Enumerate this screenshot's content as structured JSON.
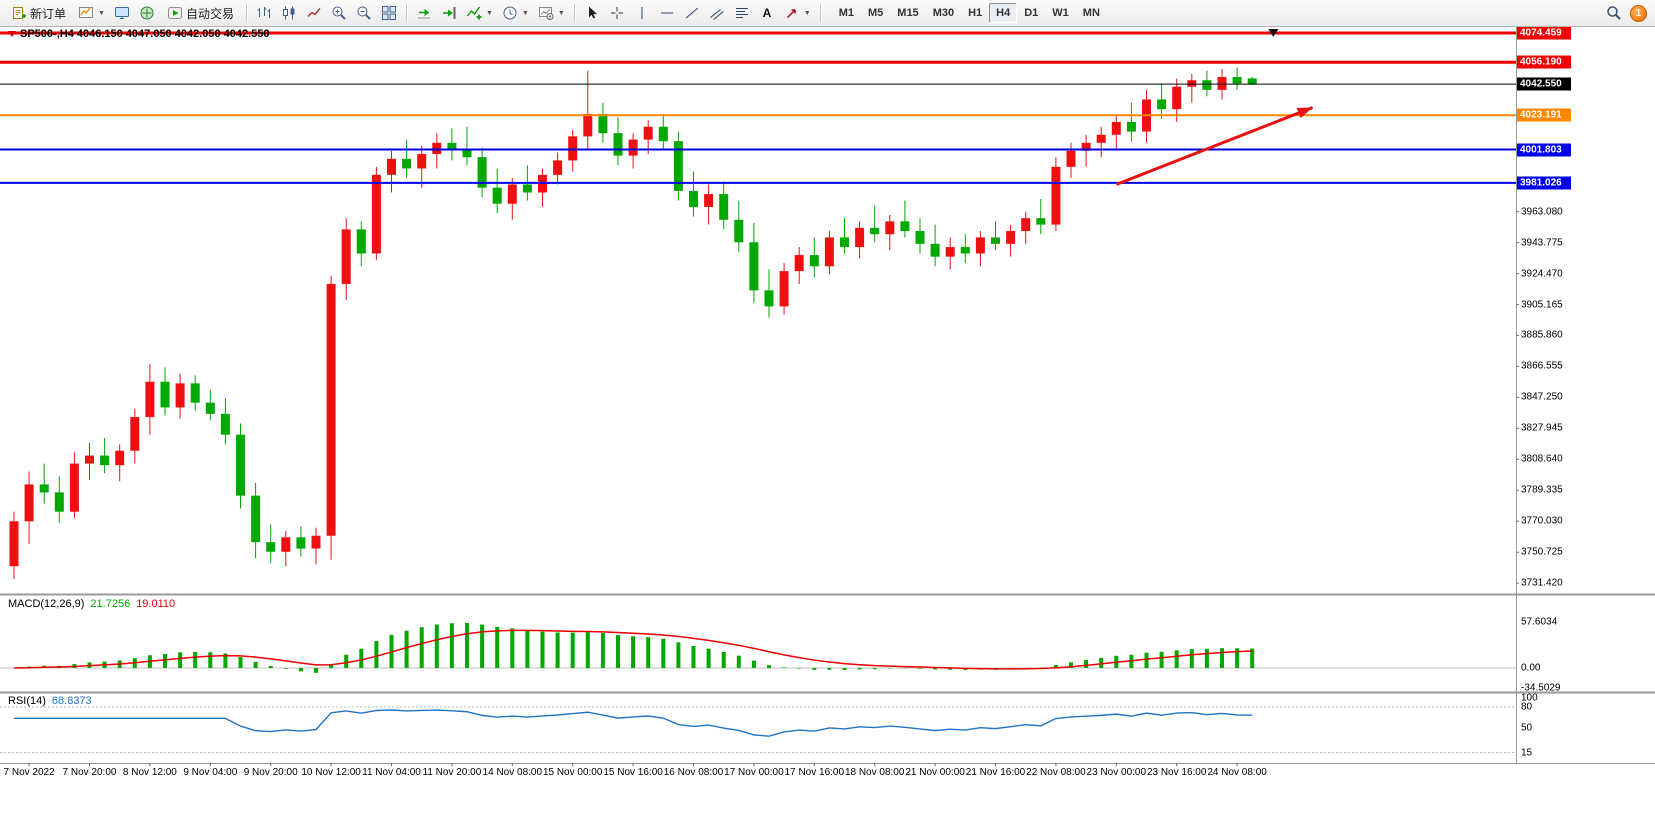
{
  "toolbar": {
    "new_order": "新订单",
    "autotrading": "自动交易",
    "timeframes": [
      "M1",
      "M5",
      "M15",
      "M30",
      "H1",
      "H4",
      "D1",
      "W1",
      "MN"
    ],
    "active_timeframe": "H4",
    "notification_count": "1"
  },
  "symbol_line": {
    "text": "SP500-,H4 4046.150 4047.050 4042.050 4042.550"
  },
  "chart_data": {
    "type": "candlestick",
    "symbol": "SP500-",
    "timeframe": "H4",
    "last_ohlc": {
      "open": 4046.15,
      "high": 4047.05,
      "low": 4042.05,
      "close": 4042.55
    },
    "price_axis": {
      "max": 4078.2,
      "min": 3725.3,
      "tick_labels": [
        "3963.080",
        "3943.775",
        "3924.470",
        "3905.165",
        "3885.860",
        "3866.555",
        "3847.250",
        "3827.945",
        "3808.640",
        "3789.335",
        "3770.030",
        "3750.725",
        "3731.420"
      ]
    },
    "x_labels": [
      "7 Nov 2022",
      "7 Nov 20:00",
      "8 Nov 12:00",
      "9 Nov 04:00",
      "9 Nov 20:00",
      "10 Nov 12:00",
      "11 Nov 04:00",
      "11 Nov 20:00",
      "14 Nov 08:00",
      "15 Nov 00:00",
      "15 Nov 16:00",
      "16 Nov 08:00",
      "17 Nov 00:00",
      "17 Nov 16:00",
      "18 Nov 08:00",
      "21 Nov 00:00",
      "21 Nov 16:00",
      "22 Nov 08:00",
      "23 Nov 00:00",
      "23 Nov 16:00",
      "24 Nov 08:00"
    ],
    "x_label_start_index": 1,
    "x_label_step": 4,
    "colors": {
      "up": "#ee1010",
      "down": "#00a800"
    },
    "levels": [
      {
        "price": 4074.459,
        "label": "4074.459",
        "color": "#ee0000",
        "width": 3
      },
      {
        "price": 4056.19,
        "label": "4056.190",
        "color": "#ee0000",
        "width": 3
      },
      {
        "price": 4042.55,
        "label": "4042.550",
        "color": "#000000",
        "width": 1
      },
      {
        "price": 4023.191,
        "label": "4023.191",
        "color": "#ff8800",
        "width": 2
      },
      {
        "price": 4001.803,
        "label": "4001.803",
        "color": "#0000e6",
        "width": 2
      },
      {
        "price": 3981.026,
        "label": "3981.026",
        "color": "#0000e6",
        "width": 2
      }
    ],
    "trend_arrow": {
      "from": {
        "index": 73,
        "price": 3980
      },
      "to": {
        "index": 86,
        "price": 4028
      },
      "color": "#e81212"
    },
    "time_marker_index": 83.4,
    "candles": [
      [
        3742,
        3776,
        3734,
        3770
      ],
      [
        3770,
        3801,
        3756,
        3793
      ],
      [
        3793,
        3806,
        3781,
        3788
      ],
      [
        3788,
        3798,
        3769,
        3776
      ],
      [
        3776,
        3813,
        3772,
        3806
      ],
      [
        3806,
        3819,
        3796,
        3811
      ],
      [
        3811,
        3822,
        3800,
        3805
      ],
      [
        3805,
        3818,
        3795,
        3814
      ],
      [
        3814,
        3840,
        3806,
        3835
      ],
      [
        3835,
        3868,
        3824,
        3857
      ],
      [
        3857,
        3866,
        3836,
        3841
      ],
      [
        3841,
        3862,
        3834,
        3856
      ],
      [
        3856,
        3861,
        3839,
        3844
      ],
      [
        3844,
        3852,
        3833,
        3837
      ],
      [
        3837,
        3847,
        3818,
        3824
      ],
      [
        3824,
        3831,
        3778,
        3786
      ],
      [
        3786,
        3794,
        3747,
        3757
      ],
      [
        3757,
        3768,
        3744,
        3751
      ],
      [
        3751,
        3764,
        3742,
        3760
      ],
      [
        3760,
        3767,
        3748,
        3753
      ],
      [
        3753,
        3766,
        3743,
        3761
      ],
      [
        3761,
        3923,
        3746,
        3918
      ],
      [
        3918,
        3959,
        3908,
        3952
      ],
      [
        3952,
        3957,
        3929,
        3937
      ],
      [
        3937,
        3991,
        3933,
        3986
      ],
      [
        3986,
        4001,
        3975,
        3996
      ],
      [
        3996,
        4008,
        3984,
        3990
      ],
      [
        3990,
        4004,
        3978,
        3999
      ],
      [
        3999,
        4012,
        3990,
        4006
      ],
      [
        4006,
        4015,
        3995,
        4002
      ],
      [
        4002,
        4016,
        3992,
        3997
      ],
      [
        3997,
        4003,
        3972,
        3978
      ],
      [
        3978,
        3990,
        3962,
        3968
      ],
      [
        3968,
        3984,
        3958,
        3980
      ],
      [
        3980,
        3992,
        3970,
        3975
      ],
      [
        3975,
        3990,
        3966,
        3986
      ],
      [
        3986,
        4000,
        3980,
        3995
      ],
      [
        3995,
        4014,
        3988,
        4010
      ],
      [
        4010,
        4051,
        4002,
        4024
      ],
      [
        4024,
        4031,
        4006,
        4012
      ],
      [
        4012,
        4022,
        3992,
        3998
      ],
      [
        3998,
        4012,
        3990,
        4008
      ],
      [
        4008,
        4020,
        3999,
        4016
      ],
      [
        4016,
        4024,
        4002,
        4007
      ],
      [
        4007,
        4013,
        3970,
        3976
      ],
      [
        3976,
        3988,
        3960,
        3966
      ],
      [
        3966,
        3980,
        3955,
        3974
      ],
      [
        3974,
        3982,
        3952,
        3958
      ],
      [
        3958,
        3970,
        3938,
        3944
      ],
      [
        3944,
        3956,
        3906,
        3914
      ],
      [
        3914,
        3927,
        3897,
        3904
      ],
      [
        3904,
        3931,
        3899,
        3926
      ],
      [
        3926,
        3941,
        3918,
        3936
      ],
      [
        3936,
        3947,
        3922,
        3929
      ],
      [
        3929,
        3951,
        3924,
        3947
      ],
      [
        3947,
        3959,
        3937,
        3941
      ],
      [
        3941,
        3957,
        3934,
        3953
      ],
      [
        3953,
        3967,
        3944,
        3949
      ],
      [
        3949,
        3961,
        3939,
        3957
      ],
      [
        3957,
        3970,
        3947,
        3951
      ],
      [
        3951,
        3959,
        3937,
        3943
      ],
      [
        3943,
        3955,
        3929,
        3935
      ],
      [
        3935,
        3947,
        3927,
        3941
      ],
      [
        3941,
        3949,
        3931,
        3937
      ],
      [
        3937,
        3951,
        3929,
        3947
      ],
      [
        3947,
        3957,
        3939,
        3943
      ],
      [
        3943,
        3955,
        3935,
        3951
      ],
      [
        3951,
        3963,
        3943,
        3959
      ],
      [
        3959,
        3971,
        3949,
        3955
      ],
      [
        3955,
        3997,
        3951,
        3991
      ],
      [
        3991,
        4006,
        3984,
        4001
      ],
      [
        4001,
        4011,
        3991,
        4006
      ],
      [
        4006,
        4016,
        3997,
        4011
      ],
      [
        4011,
        4023,
        4001,
        4019
      ],
      [
        4019,
        4031,
        4007,
        4013
      ],
      [
        4013,
        4039,
        4006,
        4033
      ],
      [
        4033,
        4043,
        4021,
        4027
      ],
      [
        4027,
        4046,
        4019,
        4041
      ],
      [
        4041,
        4049,
        4031,
        4045
      ],
      [
        4045,
        4051,
        4035,
        4039
      ],
      [
        4039,
        4052,
        4033,
        4047
      ],
      [
        4047,
        4053,
        4039,
        4043
      ],
      [
        4046.15,
        4047.05,
        4042.05,
        4042.55
      ]
    ],
    "indicators": [
      {
        "type": "macd",
        "title": "MACD(12,26,9)",
        "params": [
          12,
          26,
          9
        ],
        "main_value_text": "21.7256",
        "signal_value_text": "19.0110",
        "axis_labels": [
          "57.6034",
          "0.00",
          "-34.5029"
        ],
        "histogram_color": "#00a800",
        "signal_color": "#ee0000"
      },
      {
        "type": "rsi",
        "title": "RSI(14)",
        "params": [
          14
        ],
        "value_text": "68.8373",
        "axis_labels": [
          "100",
          "80",
          "50",
          "15"
        ],
        "levels": [
          80,
          15
        ],
        "line_color": "#2273c4"
      }
    ]
  }
}
